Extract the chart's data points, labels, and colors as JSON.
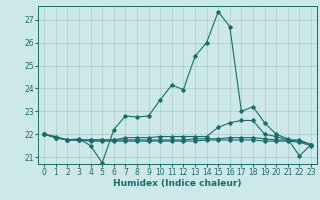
{
  "xlabel": "Humidex (Indice chaleur)",
  "background_color": "#cce8e8",
  "grid_color": "#aacccc",
  "line_color": "#1a6b6b",
  "xlim": [
    -0.5,
    23.5
  ],
  "ylim": [
    20.7,
    27.6
  ],
  "yticks": [
    21,
    22,
    23,
    24,
    25,
    26,
    27
  ],
  "xticks": [
    0,
    1,
    2,
    3,
    4,
    5,
    6,
    7,
    8,
    9,
    10,
    11,
    12,
    13,
    14,
    15,
    16,
    17,
    18,
    19,
    20,
    21,
    22,
    23
  ],
  "curves": [
    {
      "x": [
        0,
        1,
        2,
        3,
        4,
        5,
        6,
        7,
        8,
        9,
        10,
        11,
        12,
        13,
        14,
        15,
        16,
        17,
        18,
        19,
        20,
        21,
        22,
        23
      ],
      "y": [
        22.0,
        21.9,
        21.75,
        21.8,
        21.5,
        20.75,
        22.2,
        22.8,
        22.75,
        22.8,
        23.5,
        24.15,
        23.95,
        25.4,
        26.0,
        27.35,
        26.7,
        23.0,
        23.2,
        22.5,
        22.0,
        21.8,
        21.05,
        21.55
      ]
    },
    {
      "x": [
        0,
        1,
        2,
        3,
        4,
        5,
        6,
        7,
        8,
        9,
        10,
        11,
        12,
        13,
        14,
        15,
        16,
        17,
        18,
        19,
        20,
        21,
        22,
        23
      ],
      "y": [
        22.0,
        21.85,
        21.75,
        21.75,
        21.75,
        21.75,
        21.75,
        21.85,
        21.85,
        21.85,
        21.9,
        21.9,
        21.9,
        21.9,
        21.9,
        22.3,
        22.5,
        22.6,
        22.6,
        22.0,
        21.9,
        21.75,
        21.7,
        21.55
      ]
    },
    {
      "x": [
        0,
        1,
        2,
        3,
        4,
        5,
        6,
        7,
        8,
        9,
        10,
        11,
        12,
        13,
        14,
        15,
        16,
        17,
        18,
        19,
        20,
        21,
        22,
        23
      ],
      "y": [
        22.0,
        21.85,
        21.75,
        21.75,
        21.75,
        21.75,
        21.75,
        21.75,
        21.75,
        21.75,
        21.75,
        21.75,
        21.75,
        21.8,
        21.8,
        21.8,
        21.85,
        21.85,
        21.85,
        21.8,
        21.75,
        21.75,
        21.75,
        21.55
      ]
    },
    {
      "x": [
        0,
        1,
        2,
        3,
        4,
        5,
        6,
        7,
        8,
        9,
        10,
        11,
        12,
        13,
        14,
        15,
        16,
        17,
        18,
        19,
        20,
        21,
        22,
        23
      ],
      "y": [
        22.0,
        21.85,
        21.75,
        21.75,
        21.7,
        21.7,
        21.7,
        21.7,
        21.7,
        21.7,
        21.7,
        21.7,
        21.7,
        21.7,
        21.75,
        21.75,
        21.75,
        21.75,
        21.75,
        21.7,
        21.7,
        21.7,
        21.65,
        21.5
      ]
    }
  ]
}
